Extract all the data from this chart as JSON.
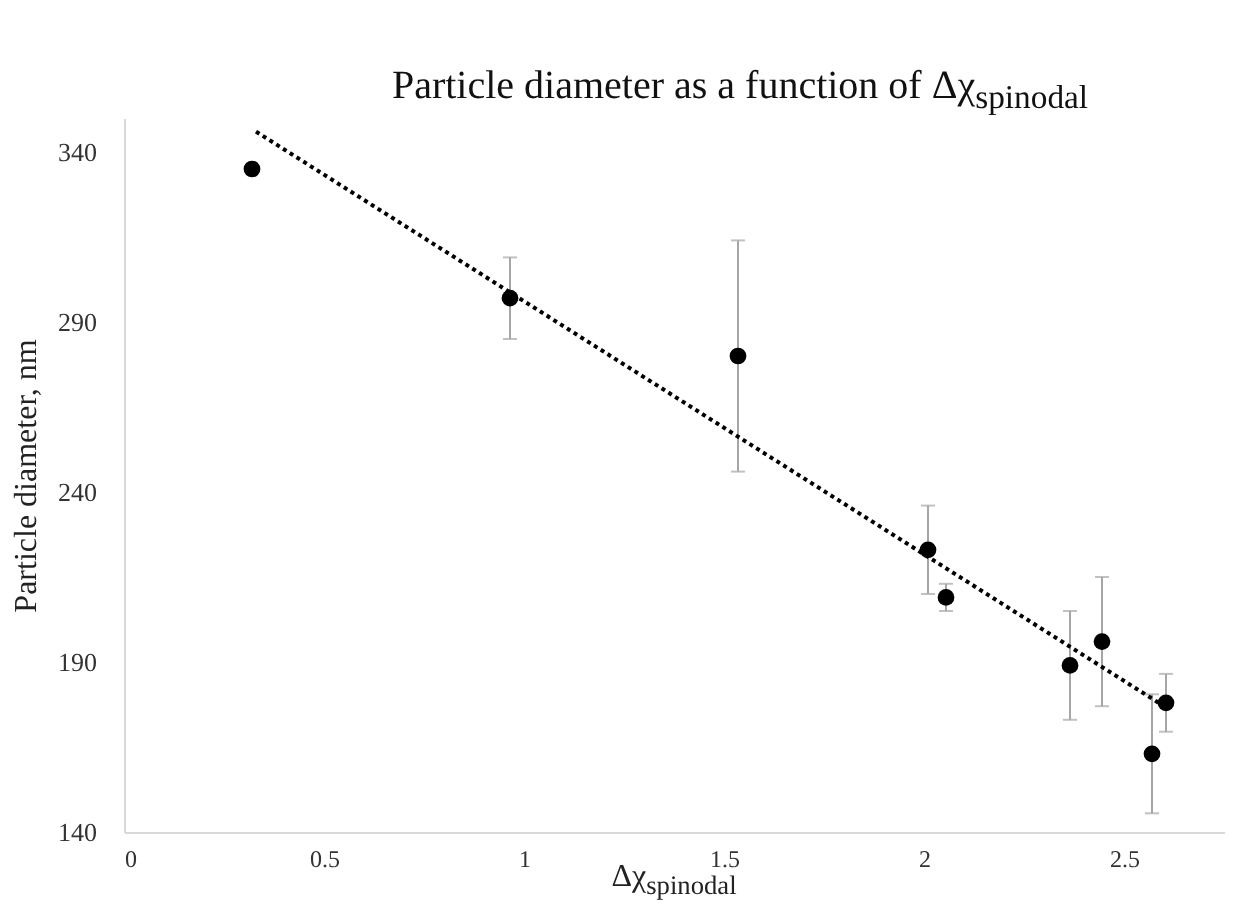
{
  "chart_data": {
    "type": "scatter",
    "title": "Particle diameter as a function of Δχ$_{spinodal}$",
    "xlabel": "Δχ$_{spinodal}$",
    "ylabel": "Particle diameter, nm",
    "xlim": [
      0,
      2.75
    ],
    "xticks": [
      0,
      0.5,
      1,
      1.5,
      2,
      2.5
    ],
    "ylim": [
      140,
      350
    ],
    "yticks": [
      140,
      190,
      240,
      290,
      340
    ],
    "grid": false,
    "series": [
      {
        "marker": "circle",
        "color": "#000000",
        "x": [
          0.32,
          0.965,
          1.535,
          2.01,
          2.055,
          2.365,
          2.445,
          2.57,
          2.605
        ],
        "values": [
          335,
          297,
          280,
          223,
          209,
          189,
          196,
          163,
          178
        ],
        "errors": [
          null,
          12,
          34,
          13,
          4,
          16,
          19,
          17.5,
          8.5
        ]
      },
      {
        "type": "line",
        "color": "#000000",
        "line_style": "dotted",
        "x": [
          0.33,
          2.6
        ],
        "values": [
          346,
          177
        ]
      }
    ]
  }
}
